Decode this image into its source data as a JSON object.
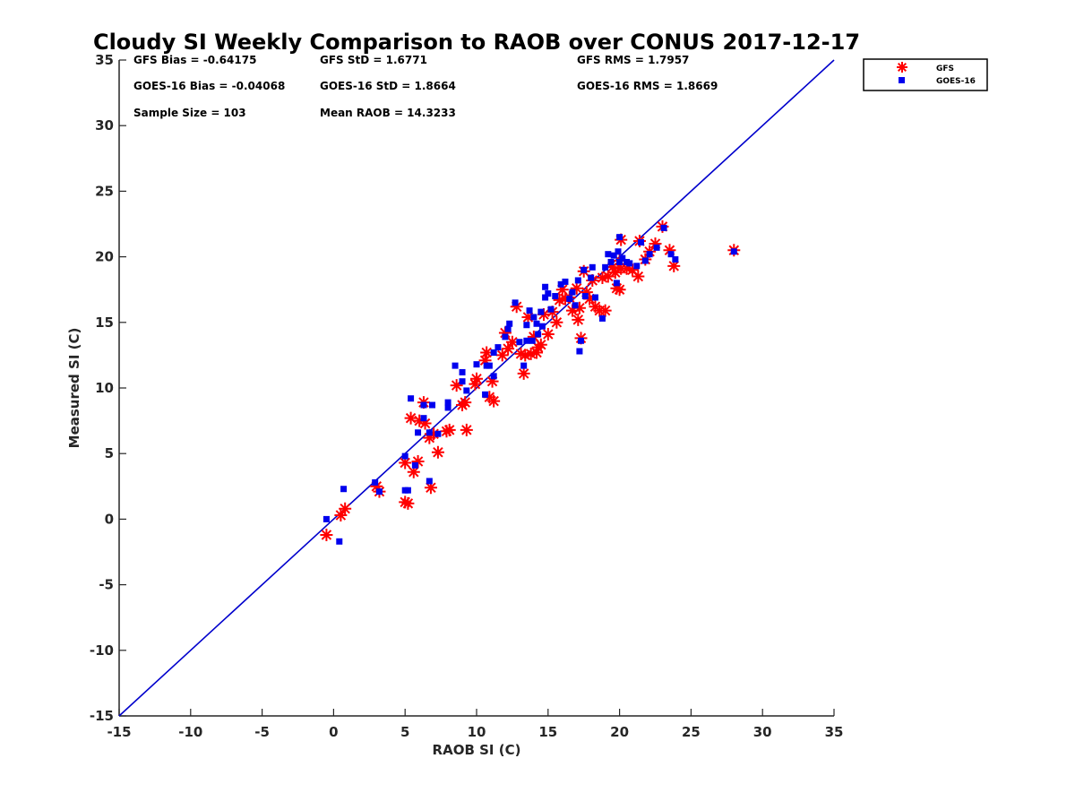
{
  "chart_data": {
    "type": "scatter",
    "title": "Cloudy SI Weekly Comparison to RAOB over CONUS 2017-12-17",
    "xlabel": "RAOB SI (C)",
    "ylabel": "Measured SI (C)",
    "xlim": [
      -15,
      35
    ],
    "ylim": [
      -15,
      35
    ],
    "xticks": [
      "-15",
      "-10",
      "-5",
      "0",
      "5",
      "10",
      "15",
      "20",
      "25",
      "30",
      "35"
    ],
    "yticks": [
      "35",
      "30",
      "25",
      "20",
      "15",
      "10",
      "5",
      "0",
      "-5",
      "-10",
      "-15"
    ],
    "grid": false,
    "legend_position": "outside-top-right",
    "stats": [
      "GFS Bias = -0.64175",
      "GFS StD = 1.6771",
      "GFS RMS = 1.7957",
      "GOES-16 Bias = -0.04068",
      "GOES-16 StD = 1.8664",
      "GOES-16 RMS = 1.8669",
      "Sample Size = 103",
      "Mean RAOB = 14.3233"
    ],
    "reference_line": {
      "x": [
        -15,
        35
      ],
      "y": [
        -15,
        35
      ],
      "color": "#0000cc"
    },
    "series": [
      {
        "name": "GFS",
        "marker": "asterisk",
        "color": "#ff0000",
        "points": [
          [
            -0.5,
            -1.2
          ],
          [
            0.5,
            0.3
          ],
          [
            0.8,
            0.8
          ],
          [
            3.0,
            2.5
          ],
          [
            3.2,
            2.1
          ],
          [
            5.0,
            1.3
          ],
          [
            5.2,
            1.2
          ],
          [
            5.0,
            4.3
          ],
          [
            5.6,
            3.6
          ],
          [
            5.9,
            4.4
          ],
          [
            5.4,
            7.7
          ],
          [
            6.0,
            7.5
          ],
          [
            6.3,
            8.9
          ],
          [
            6.4,
            7.3
          ],
          [
            6.7,
            6.2
          ],
          [
            6.8,
            2.4
          ],
          [
            7.0,
            6.5
          ],
          [
            7.3,
            5.1
          ],
          [
            7.9,
            6.7
          ],
          [
            8.1,
            6.8
          ],
          [
            8.6,
            10.2
          ],
          [
            9.0,
            8.7
          ],
          [
            9.2,
            8.9
          ],
          [
            9.3,
            6.8
          ],
          [
            9.9,
            10.3
          ],
          [
            10.0,
            10.7
          ],
          [
            10.6,
            12.1
          ],
          [
            10.7,
            12.7
          ],
          [
            10.9,
            9.3
          ],
          [
            11.1,
            10.5
          ],
          [
            11.2,
            9.0
          ],
          [
            11.8,
            12.5
          ],
          [
            12.0,
            14.2
          ],
          [
            12.2,
            13.0
          ],
          [
            12.5,
            13.5
          ],
          [
            12.8,
            16.2
          ],
          [
            13.1,
            12.6
          ],
          [
            13.3,
            11.1
          ],
          [
            13.4,
            12.5
          ],
          [
            13.6,
            15.4
          ],
          [
            13.8,
            12.6
          ],
          [
            14.0,
            13.9
          ],
          [
            14.2,
            12.7
          ],
          [
            14.3,
            13.1
          ],
          [
            14.5,
            13.3
          ],
          [
            14.7,
            15.6
          ],
          [
            15.0,
            14.1
          ],
          [
            15.3,
            15.8
          ],
          [
            15.6,
            15.0
          ],
          [
            15.8,
            16.7
          ],
          [
            16.0,
            17.5
          ],
          [
            16.2,
            16.8
          ],
          [
            16.5,
            16.9
          ],
          [
            16.7,
            15.9
          ],
          [
            17.0,
            17.6
          ],
          [
            17.1,
            15.2
          ],
          [
            17.2,
            16.1
          ],
          [
            17.3,
            13.8
          ],
          [
            17.5,
            18.9
          ],
          [
            17.7,
            17.3
          ],
          [
            17.9,
            16.8
          ],
          [
            18.1,
            18.2
          ],
          [
            18.3,
            16.2
          ],
          [
            18.6,
            15.9
          ],
          [
            18.8,
            18.4
          ],
          [
            19.0,
            15.9
          ],
          [
            19.2,
            18.5
          ],
          [
            19.5,
            19.2
          ],
          [
            19.7,
            18.8
          ],
          [
            19.8,
            17.6
          ],
          [
            20.0,
            17.5
          ],
          [
            20.0,
            19.7
          ],
          [
            20.1,
            19.1
          ],
          [
            20.1,
            21.3
          ],
          [
            20.5,
            19.1
          ],
          [
            20.9,
            19.0
          ],
          [
            21.3,
            18.5
          ],
          [
            21.4,
            21.2
          ],
          [
            21.8,
            19.8
          ],
          [
            22.1,
            20.4
          ],
          [
            22.5,
            21.0
          ],
          [
            23.0,
            22.3
          ],
          [
            23.5,
            20.5
          ],
          [
            23.8,
            19.3
          ],
          [
            28.0,
            20.5
          ]
        ]
      },
      {
        "name": "GOES-16",
        "marker": "square",
        "color": "#0000ee",
        "points": [
          [
            -0.5,
            0.0
          ],
          [
            0.4,
            -1.7
          ],
          [
            0.7,
            2.3
          ],
          [
            2.9,
            2.8
          ],
          [
            3.2,
            2.1
          ],
          [
            5.0,
            2.2
          ],
          [
            5.2,
            2.2
          ],
          [
            5.0,
            4.8
          ],
          [
            5.4,
            9.2
          ],
          [
            5.7,
            4.1
          ],
          [
            5.9,
            6.6
          ],
          [
            6.3,
            8.7
          ],
          [
            6.3,
            7.7
          ],
          [
            6.7,
            2.9
          ],
          [
            6.7,
            6.6
          ],
          [
            6.9,
            8.7
          ],
          [
            7.3,
            6.5
          ],
          [
            8.0,
            8.5
          ],
          [
            8.0,
            8.9
          ],
          [
            8.5,
            11.7
          ],
          [
            9.0,
            10.5
          ],
          [
            9.0,
            11.2
          ],
          [
            9.3,
            9.8
          ],
          [
            10.0,
            11.8
          ],
          [
            10.6,
            9.5
          ],
          [
            10.7,
            11.7
          ],
          [
            10.9,
            11.7
          ],
          [
            11.2,
            10.9
          ],
          [
            11.2,
            12.7
          ],
          [
            11.5,
            13.1
          ],
          [
            12.0,
            13.9
          ],
          [
            12.2,
            14.5
          ],
          [
            12.3,
            14.9
          ],
          [
            12.7,
            16.5
          ],
          [
            13.0,
            13.5
          ],
          [
            13.3,
            11.7
          ],
          [
            13.5,
            13.6
          ],
          [
            13.5,
            14.8
          ],
          [
            13.7,
            15.9
          ],
          [
            13.9,
            13.6
          ],
          [
            14.0,
            15.4
          ],
          [
            14.2,
            14.9
          ],
          [
            14.3,
            14.1
          ],
          [
            14.5,
            15.8
          ],
          [
            14.6,
            14.7
          ],
          [
            14.8,
            16.9
          ],
          [
            14.8,
            17.7
          ],
          [
            15.0,
            17.2
          ],
          [
            15.2,
            16.0
          ],
          [
            15.5,
            17.0
          ],
          [
            15.9,
            17.9
          ],
          [
            16.2,
            18.1
          ],
          [
            16.5,
            16.8
          ],
          [
            16.7,
            17.3
          ],
          [
            16.9,
            16.3
          ],
          [
            17.1,
            18.2
          ],
          [
            17.2,
            12.8
          ],
          [
            17.3,
            13.6
          ],
          [
            17.5,
            19.0
          ],
          [
            17.6,
            17.0
          ],
          [
            18.0,
            18.4
          ],
          [
            18.1,
            19.2
          ],
          [
            18.3,
            16.9
          ],
          [
            18.8,
            15.3
          ],
          [
            19.0,
            19.2
          ],
          [
            19.2,
            20.2
          ],
          [
            19.4,
            19.6
          ],
          [
            19.6,
            20.1
          ],
          [
            19.8,
            18.0
          ],
          [
            19.9,
            20.4
          ],
          [
            20.0,
            19.6
          ],
          [
            20.0,
            21.5
          ],
          [
            20.2,
            19.9
          ],
          [
            20.5,
            19.6
          ],
          [
            20.7,
            19.5
          ],
          [
            21.2,
            19.3
          ],
          [
            21.5,
            21.1
          ],
          [
            21.8,
            19.7
          ],
          [
            22.1,
            20.2
          ],
          [
            22.6,
            20.7
          ],
          [
            23.1,
            22.2
          ],
          [
            23.6,
            20.2
          ],
          [
            23.9,
            19.8
          ],
          [
            28.0,
            20.4
          ]
        ]
      }
    ]
  }
}
